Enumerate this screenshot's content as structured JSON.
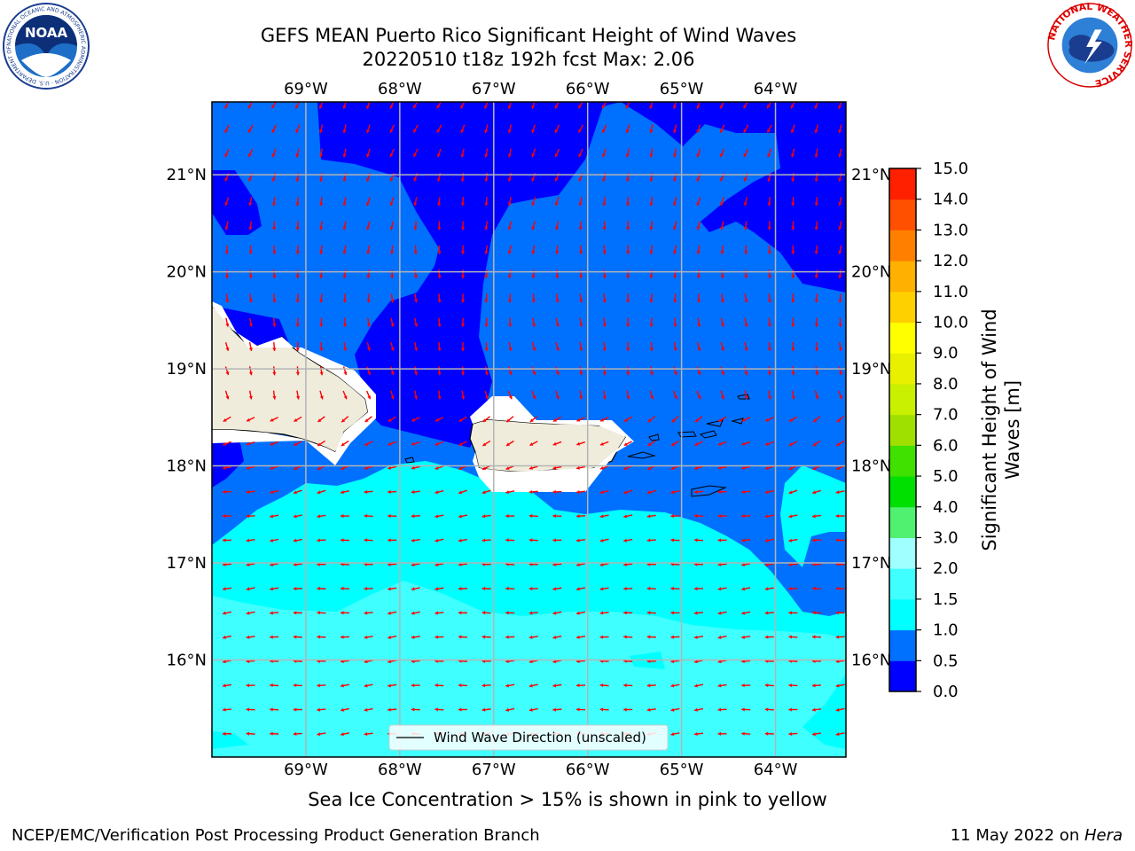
{
  "header": {
    "title_line1": "GEFS MEAN Puerto Rico Significant Height of Wind Waves",
    "title_line2": "20220510 t18z 192h fcst   Max: 2.06",
    "left_logo_text": "NOAA",
    "left_logo_ring": "NATIONAL OCEANIC AND ATMOSPHERIC ADMINISTRATION · U.S. DEPARTMENT OF COMMERCE",
    "right_logo_ring": "NATIONAL WEATHER SERVICE"
  },
  "map": {
    "lon_labels": [
      "69°W",
      "68°W",
      "67°W",
      "66°W",
      "65°W",
      "64°W"
    ],
    "lat_labels": [
      "21°N",
      "20°N",
      "19°N",
      "18°N",
      "17°N",
      "16°N"
    ],
    "lon_range": [
      -70.0,
      -63.25
    ],
    "lat_range": [
      15.0,
      21.75
    ],
    "legend_label": "Wind Wave Direction (unscaled)",
    "arrow_color": "#ff0000",
    "land_color": "#efecdc"
  },
  "colorbar": {
    "label": "Significant Height of Wind Waves [m]",
    "ticks": [
      "0.0",
      "0.5",
      "1.0",
      "1.5",
      "2.0",
      "3.0",
      "4.0",
      "5.0",
      "6.0",
      "7.0",
      "8.0",
      "9.0",
      "10.0",
      "11.0",
      "12.0",
      "13.0",
      "14.0",
      "15.0"
    ],
    "colors": [
      "#0000ff",
      "#0070ff",
      "#00ffff",
      "#40ffff",
      "#a0ffff",
      "#50f070",
      "#00e000",
      "#40e000",
      "#a0e000",
      "#c8f000",
      "#e8f000",
      "#ffff00",
      "#ffd000",
      "#ffb000",
      "#ff8000",
      "#ff5000",
      "#ff2000"
    ]
  },
  "footer": {
    "ice_note": "Sea Ice Concentration > 15% is shown in pink to yellow",
    "left": "NCEP/EMC/Verification Post Processing Product Generation Branch",
    "date": "11 May 2022 on ",
    "machine": "Hera"
  }
}
